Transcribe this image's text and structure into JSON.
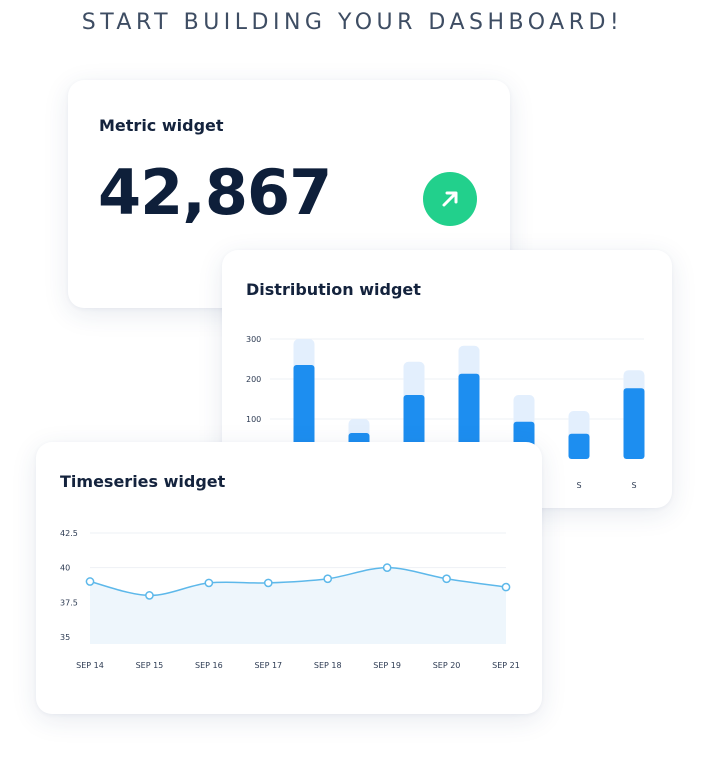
{
  "headline": "START BUILDING YOUR DASHBOARD!",
  "metric": {
    "title": "Metric widget",
    "value": "42,867",
    "trend_icon": "arrow-up-right-icon",
    "trend_color": "#22d08c"
  },
  "distribution": {
    "title": "Distribution widget",
    "x_labels_visible": [
      "",
      "",
      "",
      "",
      "",
      "S",
      "S"
    ]
  },
  "timeseries": {
    "title": "Timeseries widget"
  },
  "colors": {
    "bar_primary": "#1d8ef0",
    "bar_ghost": "#e3effd",
    "line": "#5db8ea",
    "area": "#eef6fc",
    "text_dark": "#14233d"
  },
  "chart_data": [
    {
      "type": "bar",
      "title": "Distribution widget",
      "categories": [
        "",
        "",
        "",
        "",
        "",
        "S",
        "S"
      ],
      "yticks": [
        100,
        200,
        300
      ],
      "ylim": [
        0,
        320
      ],
      "series": [
        {
          "values": [
            235,
            65,
            160,
            213,
            93,
            63,
            177
          ]
        },
        {
          "values": [
            300,
            100,
            243,
            283,
            160,
            120,
            222
          ]
        }
      ],
      "grid": true
    },
    {
      "type": "line",
      "title": "Timeseries widget",
      "x": [
        "SEP 14",
        "SEP 15",
        "SEP 16",
        "SEP 17",
        "SEP 18",
        "SEP 19",
        "SEP 20",
        "SEP 21"
      ],
      "yticks": [
        35,
        37.5,
        40,
        42.5
      ],
      "ylim": [
        34.5,
        43
      ],
      "series": [
        {
          "values": [
            39.0,
            38.0,
            38.9,
            38.9,
            39.2,
            40.0,
            39.2,
            38.6
          ]
        }
      ],
      "grid": true,
      "area_fill": true
    }
  ]
}
